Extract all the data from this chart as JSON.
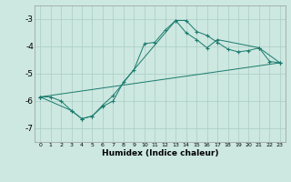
{
  "xlabel": "Humidex (Indice chaleur)",
  "background_color": "#cce8e0",
  "grid_color": "#aaccC4",
  "line_color": "#1a7a6e",
  "xlim": [
    -0.5,
    23.5
  ],
  "ylim": [
    -7.5,
    -2.5
  ],
  "xticks": [
    0,
    1,
    2,
    3,
    4,
    5,
    6,
    7,
    8,
    9,
    10,
    11,
    12,
    13,
    14,
    15,
    16,
    17,
    18,
    19,
    20,
    21,
    22,
    23
  ],
  "yticks": [
    -7,
    -6,
    -5,
    -4,
    -3
  ],
  "series": [
    {
      "x": [
        0,
        1,
        2,
        3,
        4,
        5,
        6,
        7,
        9,
        10,
        11,
        12,
        13,
        14,
        15,
        16,
        17,
        18,
        19,
        20,
        21,
        22,
        23
      ],
      "y": [
        -5.85,
        -5.85,
        -6.0,
        -6.35,
        -6.65,
        -6.55,
        -6.15,
        -5.8,
        -4.85,
        -3.9,
        -3.85,
        -3.4,
        -3.05,
        -3.05,
        -3.45,
        -3.6,
        -3.85,
        -4.1,
        -4.2,
        -4.15,
        -4.05,
        -4.55,
        -4.6
      ]
    },
    {
      "x": [
        0,
        3,
        4,
        5,
        6,
        7,
        8,
        13,
        14,
        15,
        16,
        17,
        21,
        23
      ],
      "y": [
        -5.85,
        -6.35,
        -6.65,
        -6.55,
        -6.2,
        -6.0,
        -5.3,
        -3.05,
        -3.5,
        -3.75,
        -4.05,
        -3.75,
        -4.05,
        -4.6
      ]
    },
    {
      "x": [
        0,
        23
      ],
      "y": [
        -5.85,
        -4.6
      ]
    }
  ]
}
